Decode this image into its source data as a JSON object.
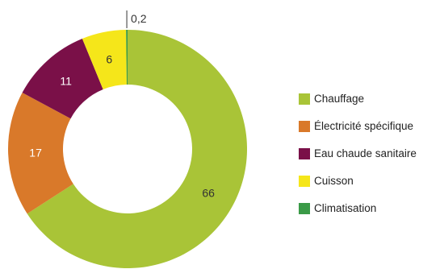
{
  "chart_data": {
    "type": "pie",
    "donut": true,
    "start_angle_deg": 0,
    "direction": "clockwise",
    "labels": [
      "Chauffage",
      "Électricité spécifique",
      "Eau chaude sanitaire",
      "Cuisson",
      "Climatisation"
    ],
    "values": [
      66,
      17,
      11,
      6,
      0.2
    ],
    "value_labels": [
      "66",
      "17",
      "11",
      "6",
      "0,2"
    ],
    "colors": [
      "#a9c437",
      "#d9792a",
      "#7a1048",
      "#f5e61a",
      "#3a9a47"
    ],
    "label_colors": [
      "#333333",
      "#ffffff",
      "#ffffff",
      "#333333",
      "#333333"
    ],
    "legend_position": "right"
  }
}
